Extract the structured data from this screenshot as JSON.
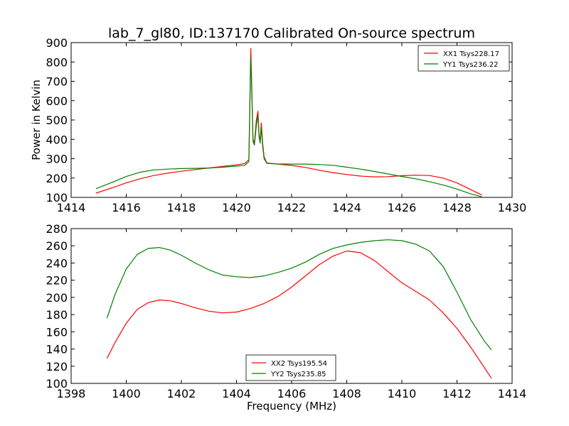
{
  "figure": {
    "title": "lab_7_gl80, ID:137170 Calibrated On-source spectrum",
    "xlabel": "Frequency (MHz)",
    "ylabel": "Power in Kelvin",
    "background": "#ffffff"
  },
  "chart_data": [
    {
      "type": "line",
      "title": "lab_7_gl80, ID:137170 Calibrated On-source spectrum",
      "xlabel": "",
      "ylabel": "Power in Kelvin",
      "xlim": [
        1414,
        1430
      ],
      "ylim": [
        100,
        900
      ],
      "xticks": [
        1414,
        1416,
        1418,
        1420,
        1422,
        1424,
        1426,
        1428,
        1430
      ],
      "yticks": [
        100,
        200,
        300,
        400,
        500,
        600,
        700,
        800,
        900
      ],
      "grid": false,
      "legend": "top-right",
      "series": [
        {
          "name": "XX1 Tsys228.17",
          "color": "#ff0000",
          "x": [
            1414.9,
            1415.5,
            1416,
            1416.5,
            1417,
            1417.5,
            1418,
            1418.5,
            1419,
            1419.5,
            1420,
            1420.3,
            1420.45,
            1420.52,
            1420.55,
            1420.6,
            1420.65,
            1420.72,
            1420.78,
            1420.82,
            1420.86,
            1420.9,
            1420.95,
            1421.0,
            1421.1,
            1421.3,
            1421.5,
            1422,
            1422.5,
            1423,
            1423.5,
            1424,
            1424.5,
            1425,
            1425.5,
            1426,
            1426.5,
            1427,
            1427.5,
            1428,
            1428.5,
            1428.9
          ],
          "y": [
            122,
            150,
            175,
            196,
            213,
            225,
            235,
            244,
            252,
            260,
            268,
            275,
            295,
            870,
            700,
            400,
            380,
            500,
            545,
            420,
            395,
            485,
            380,
            310,
            278,
            275,
            272,
            265,
            255,
            240,
            228,
            218,
            210,
            206,
            207,
            212,
            215,
            213,
            200,
            175,
            140,
            112
          ]
        },
        {
          "name": "YY1 Tsys236.22",
          "color": "#008000",
          "x": [
            1414.9,
            1415.5,
            1416,
            1416.5,
            1417,
            1417.5,
            1418,
            1418.5,
            1419,
            1419.5,
            1420,
            1420.3,
            1420.45,
            1420.52,
            1420.55,
            1420.6,
            1420.65,
            1420.72,
            1420.78,
            1420.82,
            1420.86,
            1420.9,
            1420.95,
            1421.0,
            1421.1,
            1421.3,
            1421.5,
            1422,
            1422.5,
            1423,
            1423.5,
            1424,
            1424.5,
            1425,
            1425.5,
            1426,
            1426.5,
            1427,
            1427.5,
            1428,
            1428.5,
            1428.9
          ],
          "y": [
            145,
            178,
            208,
            230,
            242,
            246,
            249,
            250,
            252,
            256,
            262,
            266,
            285,
            820,
            680,
            390,
            370,
            470,
            525,
            410,
            380,
            460,
            365,
            300,
            276,
            274,
            273,
            272,
            272,
            270,
            266,
            256,
            246,
            234,
            221,
            208,
            196,
            181,
            164,
            143,
            118,
            103
          ]
        }
      ]
    },
    {
      "type": "line",
      "title": "",
      "xlabel": "Frequency (MHz)",
      "ylabel": "",
      "xlim": [
        1398,
        1414
      ],
      "ylim": [
        100,
        280
      ],
      "xticks": [
        1398,
        1400,
        1402,
        1404,
        1406,
        1408,
        1410,
        1412,
        1414
      ],
      "yticks": [
        100,
        120,
        140,
        160,
        180,
        200,
        220,
        240,
        260,
        280
      ],
      "grid": false,
      "legend": "bottom-center",
      "series": [
        {
          "name": "XX2 Tsys195.54",
          "color": "#ff0000",
          "x": [
            1399.3,
            1399.6,
            1400,
            1400.4,
            1400.8,
            1401.2,
            1401.6,
            1402,
            1402.5,
            1403,
            1403.5,
            1404,
            1404.5,
            1405,
            1405.5,
            1406,
            1406.5,
            1407,
            1407.5,
            1408,
            1408.5,
            1409,
            1409.5,
            1410,
            1410.5,
            1411,
            1411.5,
            1412,
            1412.5,
            1413,
            1413.25
          ],
          "y": [
            129,
            148,
            170,
            186,
            194,
            197,
            196,
            193,
            188,
            184,
            182,
            183,
            187,
            193,
            201,
            212,
            225,
            238,
            248,
            254,
            252,
            243,
            230,
            217,
            207,
            197,
            182,
            164,
            142,
            118,
            106
          ]
        },
        {
          "name": "YY2 Tsys235.85",
          "color": "#008000",
          "x": [
            1399.3,
            1399.6,
            1400,
            1400.4,
            1400.8,
            1401.2,
            1401.6,
            1402,
            1402.5,
            1403,
            1403.5,
            1404,
            1404.5,
            1405,
            1405.5,
            1406,
            1406.5,
            1407,
            1407.5,
            1408,
            1408.5,
            1409,
            1409.5,
            1410,
            1410.5,
            1411,
            1411.5,
            1412,
            1412.5,
            1413,
            1413.25
          ],
          "y": [
            176,
            204,
            233,
            250,
            257,
            258,
            255,
            249,
            240,
            232,
            226,
            224,
            223,
            225,
            229,
            234,
            241,
            250,
            257,
            261,
            264,
            266,
            267,
            266,
            262,
            254,
            236,
            206,
            174,
            149,
            139
          ]
        }
      ]
    }
  ]
}
